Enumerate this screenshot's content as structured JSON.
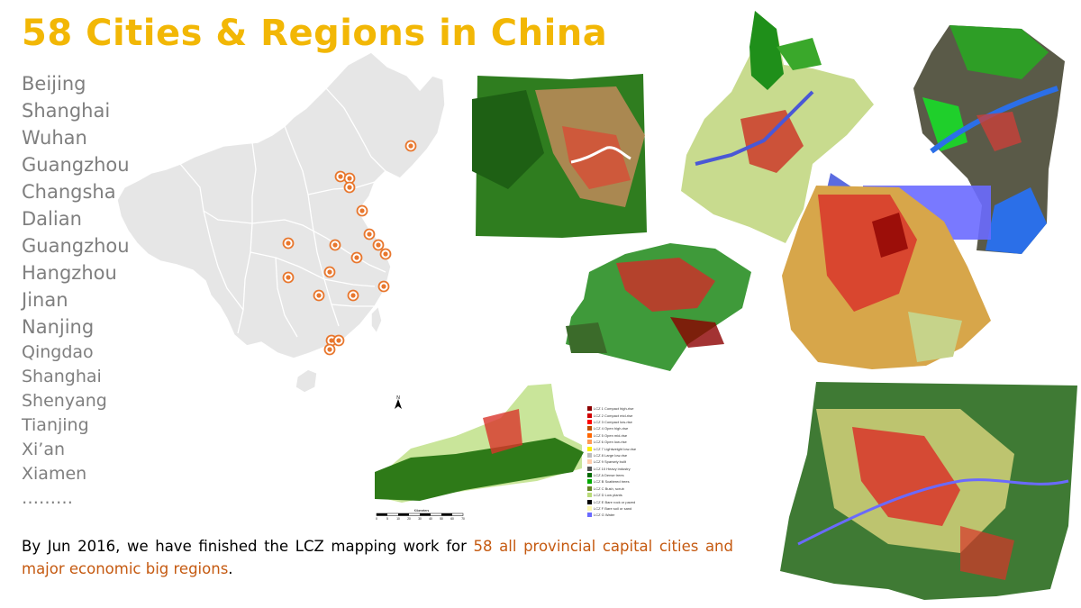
{
  "title": "58 Cities & Regions in China",
  "cities": [
    "Beijing",
    "Shanghai",
    "Wuhan",
    "Guangzhou",
    "Changsha",
    "Dalian",
    "Guangzhou",
    "Hangzhou",
    "Jinan",
    "Nanjing",
    "Qingdao",
    "Shanghai",
    "Shenyang",
    "Tianjing",
    "Xi’an",
    "Xiamen",
    "………"
  ],
  "caption": {
    "prefix": "By Jun 2016, we have finished the LCZ mapping work for ",
    "highlight": "58 all provincial capital cities and major economic big regions",
    "suffix": "."
  },
  "legend": [
    {
      "label": "LCZ 1 Compact high-rise",
      "color": "#8c0000"
    },
    {
      "label": "LCZ 2 Compact mid-rise",
      "color": "#d10000"
    },
    {
      "label": "LCZ 3 Compact low-rise",
      "color": "#ff0000"
    },
    {
      "label": "LCZ 4 Open high-rise",
      "color": "#bf4d00"
    },
    {
      "label": "LCZ 5 Open mid-rise",
      "color": "#ff6600"
    },
    {
      "label": "LCZ 6 Open low-rise",
      "color": "#ff9955"
    },
    {
      "label": "LCZ 7 Lightweight low-rise",
      "color": "#faee05"
    },
    {
      "label": "LCZ 8 Large low-rise",
      "color": "#bcbcbc"
    },
    {
      "label": "LCZ 9 Sparsely built",
      "color": "#ffccaa"
    },
    {
      "label": "LCZ 10 Heavy industry",
      "color": "#555555"
    },
    {
      "label": "LCZ A Dense trees",
      "color": "#006a00"
    },
    {
      "label": "LCZ B Scattered trees",
      "color": "#00aa00"
    },
    {
      "label": "LCZ C Bush, scrub",
      "color": "#648525"
    },
    {
      "label": "LCZ D Low plants",
      "color": "#b9db79"
    },
    {
      "label": "LCZ E Bare rock or paved",
      "color": "#000000"
    },
    {
      "label": "LCZ F Bare soil or sand",
      "color": "#fbf7ae"
    },
    {
      "label": "LCZ G Water",
      "color": "#6a6aff"
    }
  ],
  "scalebar": {
    "label": "Kilometers",
    "ticks": [
      "0",
      "5",
      "10",
      "20",
      "30",
      "40",
      "50",
      "60",
      "70"
    ]
  },
  "colors": {
    "title": "#f2b705",
    "list": "#7f7f7f",
    "highlight": "#c55a11",
    "marker": "#e8772e",
    "map": "#e6e6e6"
  },
  "icons": {
    "marker": "location-marker-icon",
    "north": "north-arrow-icon"
  }
}
